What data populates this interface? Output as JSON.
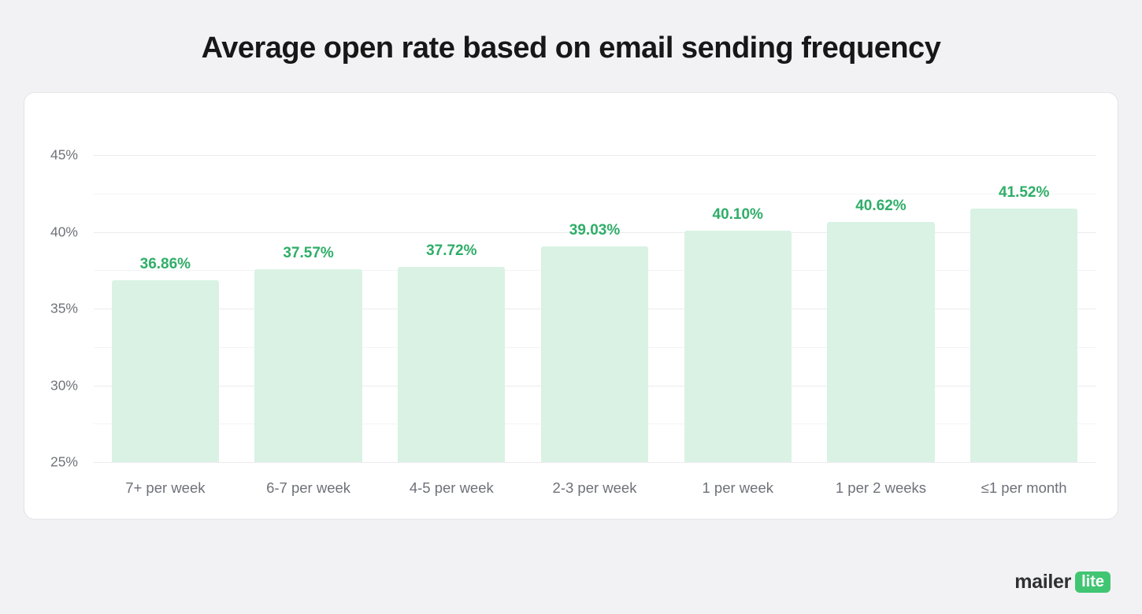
{
  "header": {
    "title": "Average open rate based on email sending frequency"
  },
  "chart_data": {
    "type": "bar",
    "title": "Average open rate based on email sending frequency",
    "categories": [
      "7+ per week",
      "6-7 per week",
      "4-5 per week",
      "2-3 per week",
      "1 per week",
      "1 per 2 weeks",
      "≤1 per month"
    ],
    "values": [
      36.86,
      37.57,
      37.72,
      39.03,
      40.1,
      40.62,
      41.52
    ],
    "value_labels": [
      "36.86%",
      "37.57%",
      "37.72%",
      "39.03%",
      "40.10%",
      "40.62%",
      "41.52%"
    ],
    "xlabel": "",
    "ylabel": "",
    "ylim": [
      25,
      45
    ],
    "yticks": [
      25,
      30,
      35,
      40,
      45
    ],
    "ytick_labels": [
      "25%",
      "30%",
      "35%",
      "40%",
      "45%"
    ],
    "minor_ticks": [
      27.5,
      32.5,
      37.5,
      42.5
    ],
    "grid": true,
    "legend": false,
    "bar_color": "#d9f2e4",
    "label_color": "#2fae68"
  },
  "footer": {
    "logo_main": "mailer",
    "logo_badge": "lite",
    "logo_badge_color": "#41c573"
  }
}
